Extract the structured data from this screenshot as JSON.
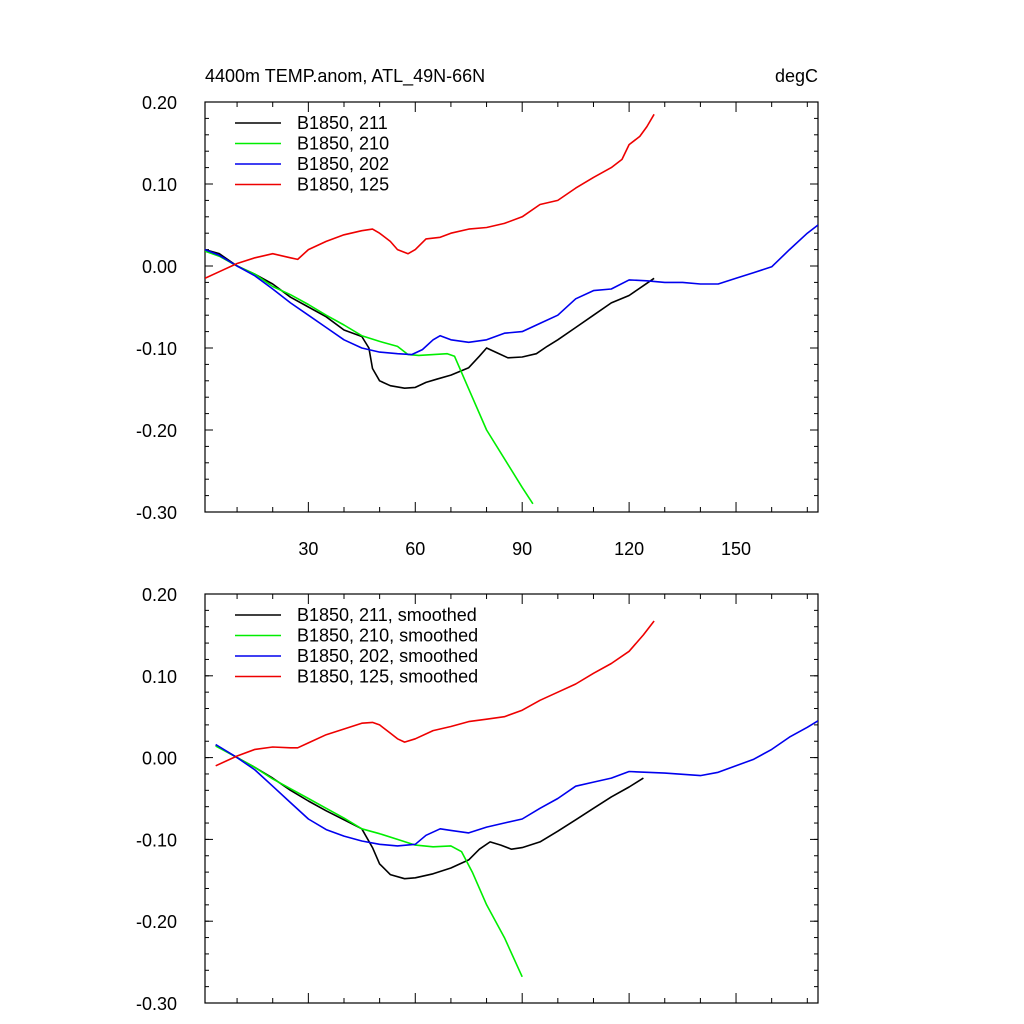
{
  "figure": {
    "title": "4400m TEMP.anom, ATL_49N-66N",
    "units": "degC"
  },
  "chart_data": [
    {
      "type": "line",
      "xlim": [
        1,
        173
      ],
      "ylim": [
        -0.3,
        0.2
      ],
      "x_ticks": [
        30,
        60,
        90,
        120,
        150
      ],
      "x_tick_labels": [
        "30",
        "60",
        "90",
        "120",
        "150"
      ],
      "y_ticks": [
        0.2,
        0.1,
        0.0,
        -0.1,
        -0.2,
        -0.3
      ],
      "y_tick_labels": [
        "0.20",
        "0.10",
        "0.00",
        "-0.10",
        "-0.20",
        "-0.30"
      ],
      "legend_position": "top-left",
      "series": [
        {
          "name": "B1850, 211",
          "color": "#000000",
          "points": [
            [
              1,
              0.02
            ],
            [
              5,
              0.015
            ],
            [
              10,
              0.0
            ],
            [
              15,
              -0.01
            ],
            [
              20,
              -0.022
            ],
            [
              25,
              -0.038
            ],
            [
              30,
              -0.05
            ],
            [
              35,
              -0.062
            ],
            [
              40,
              -0.078
            ],
            [
              45,
              -0.086
            ],
            [
              47,
              -0.1
            ],
            [
              48,
              -0.125
            ],
            [
              50,
              -0.14
            ],
            [
              53,
              -0.146
            ],
            [
              57,
              -0.149
            ],
            [
              60,
              -0.148
            ],
            [
              63,
              -0.142
            ],
            [
              66,
              -0.138
            ],
            [
              70,
              -0.133
            ],
            [
              75,
              -0.124
            ],
            [
              78,
              -0.11
            ],
            [
              80,
              -0.1
            ],
            [
              83,
              -0.106
            ],
            [
              86,
              -0.112
            ],
            [
              90,
              -0.111
            ],
            [
              94,
              -0.107
            ],
            [
              97,
              -0.098
            ],
            [
              100,
              -0.09
            ],
            [
              105,
              -0.075
            ],
            [
              110,
              -0.06
            ],
            [
              115,
              -0.045
            ],
            [
              120,
              -0.036
            ],
            [
              124,
              -0.024
            ],
            [
              127,
              -0.015
            ]
          ]
        },
        {
          "name": "B1850, 210",
          "color": "#00ee00",
          "points": [
            [
              1,
              0.018
            ],
            [
              5,
              0.012
            ],
            [
              10,
              0.0
            ],
            [
              15,
              -0.01
            ],
            [
              20,
              -0.025
            ],
            [
              25,
              -0.035
            ],
            [
              30,
              -0.047
            ],
            [
              35,
              -0.06
            ],
            [
              40,
              -0.072
            ],
            [
              45,
              -0.085
            ],
            [
              50,
              -0.092
            ],
            [
              55,
              -0.098
            ],
            [
              58,
              -0.108
            ],
            [
              61,
              -0.109
            ],
            [
              65,
              -0.108
            ],
            [
              69,
              -0.107
            ],
            [
              71,
              -0.11
            ],
            [
              73,
              -0.13
            ],
            [
              76,
              -0.16
            ],
            [
              80,
              -0.2
            ],
            [
              85,
              -0.235
            ],
            [
              90,
              -0.27
            ],
            [
              93,
              -0.29
            ]
          ]
        },
        {
          "name": "B1850, 202",
          "color": "#0000ee",
          "points": [
            [
              1,
              0.02
            ],
            [
              5,
              0.013
            ],
            [
              10,
              0.0
            ],
            [
              15,
              -0.012
            ],
            [
              20,
              -0.028
            ],
            [
              25,
              -0.045
            ],
            [
              30,
              -0.06
            ],
            [
              35,
              -0.075
            ],
            [
              40,
              -0.09
            ],
            [
              45,
              -0.1
            ],
            [
              50,
              -0.105
            ],
            [
              55,
              -0.107
            ],
            [
              59,
              -0.108
            ],
            [
              62,
              -0.102
            ],
            [
              65,
              -0.09
            ],
            [
              67,
              -0.085
            ],
            [
              70,
              -0.09
            ],
            [
              75,
              -0.093
            ],
            [
              80,
              -0.09
            ],
            [
              85,
              -0.082
            ],
            [
              90,
              -0.08
            ],
            [
              95,
              -0.07
            ],
            [
              100,
              -0.06
            ],
            [
              105,
              -0.04
            ],
            [
              110,
              -0.03
            ],
            [
              115,
              -0.028
            ],
            [
              120,
              -0.017
            ],
            [
              125,
              -0.018
            ],
            [
              130,
              -0.02
            ],
            [
              135,
              -0.02
            ],
            [
              140,
              -0.022
            ],
            [
              145,
              -0.022
            ],
            [
              150,
              -0.015
            ],
            [
              155,
              -0.008
            ],
            [
              160,
              -0.001
            ],
            [
              165,
              0.02
            ],
            [
              170,
              0.04
            ],
            [
              173,
              0.05
            ]
          ]
        },
        {
          "name": "B1850, 125",
          "color": "#ee0000",
          "points": [
            [
              1,
              -0.015
            ],
            [
              5,
              -0.007
            ],
            [
              10,
              0.003
            ],
            [
              15,
              0.01
            ],
            [
              20,
              0.015
            ],
            [
              25,
              0.01
            ],
            [
              27,
              0.008
            ],
            [
              30,
              0.02
            ],
            [
              35,
              0.03
            ],
            [
              40,
              0.038
            ],
            [
              45,
              0.043
            ],
            [
              48,
              0.045
            ],
            [
              50,
              0.04
            ],
            [
              53,
              0.03
            ],
            [
              55,
              0.02
            ],
            [
              58,
              0.015
            ],
            [
              60,
              0.02
            ],
            [
              63,
              0.033
            ],
            [
              67,
              0.035
            ],
            [
              70,
              0.04
            ],
            [
              75,
              0.045
            ],
            [
              80,
              0.047
            ],
            [
              85,
              0.052
            ],
            [
              90,
              0.06
            ],
            [
              95,
              0.075
            ],
            [
              100,
              0.08
            ],
            [
              105,
              0.095
            ],
            [
              110,
              0.108
            ],
            [
              115,
              0.12
            ],
            [
              118,
              0.13
            ],
            [
              120,
              0.148
            ],
            [
              123,
              0.158
            ],
            [
              125,
              0.17
            ],
            [
              127,
              0.185
            ]
          ]
        }
      ]
    },
    {
      "type": "line",
      "xlim": [
        1,
        173
      ],
      "ylim": [
        -0.3,
        0.2
      ],
      "x_ticks": [
        30,
        60,
        90,
        120,
        150
      ],
      "x_tick_labels": [],
      "y_ticks": [
        0.2,
        0.1,
        0.0,
        -0.1,
        -0.2,
        -0.3
      ],
      "y_tick_labels": [
        "0.20",
        "0.10",
        "0.00",
        "-0.10",
        "-0.20",
        "-0.30"
      ],
      "legend_position": "top-left",
      "series": [
        {
          "name": "B1850, 211, smoothed",
          "color": "#000000",
          "points": [
            [
              4,
              0.015
            ],
            [
              10,
              0.0
            ],
            [
              15,
              -0.012
            ],
            [
              20,
              -0.025
            ],
            [
              25,
              -0.04
            ],
            [
              30,
              -0.053
            ],
            [
              35,
              -0.065
            ],
            [
              40,
              -0.076
            ],
            [
              45,
              -0.087
            ],
            [
              48,
              -0.11
            ],
            [
              50,
              -0.13
            ],
            [
              53,
              -0.143
            ],
            [
              57,
              -0.148
            ],
            [
              60,
              -0.147
            ],
            [
              65,
              -0.142
            ],
            [
              70,
              -0.135
            ],
            [
              75,
              -0.125
            ],
            [
              78,
              -0.112
            ],
            [
              81,
              -0.103
            ],
            [
              84,
              -0.107
            ],
            [
              87,
              -0.112
            ],
            [
              90,
              -0.11
            ],
            [
              95,
              -0.103
            ],
            [
              100,
              -0.09
            ],
            [
              105,
              -0.076
            ],
            [
              110,
              -0.062
            ],
            [
              115,
              -0.048
            ],
            [
              120,
              -0.036
            ],
            [
              124,
              -0.025
            ]
          ]
        },
        {
          "name": "B1850, 210, smoothed",
          "color": "#00ee00",
          "points": [
            [
              4,
              0.014
            ],
            [
              10,
              0.0
            ],
            [
              15,
              -0.012
            ],
            [
              20,
              -0.026
            ],
            [
              25,
              -0.038
            ],
            [
              30,
              -0.05
            ],
            [
              35,
              -0.062
            ],
            [
              40,
              -0.074
            ],
            [
              45,
              -0.087
            ],
            [
              50,
              -0.093
            ],
            [
              55,
              -0.1
            ],
            [
              60,
              -0.107
            ],
            [
              65,
              -0.109
            ],
            [
              70,
              -0.108
            ],
            [
              73,
              -0.115
            ],
            [
              76,
              -0.14
            ],
            [
              80,
              -0.18
            ],
            [
              85,
              -0.22
            ],
            [
              90,
              -0.268
            ]
          ]
        },
        {
          "name": "B1850, 202, smoothed",
          "color": "#0000ee",
          "points": [
            [
              4,
              0.016
            ],
            [
              10,
              0.0
            ],
            [
              15,
              -0.015
            ],
            [
              20,
              -0.035
            ],
            [
              25,
              -0.055
            ],
            [
              30,
              -0.075
            ],
            [
              35,
              -0.088
            ],
            [
              40,
              -0.096
            ],
            [
              45,
              -0.102
            ],
            [
              50,
              -0.106
            ],
            [
              55,
              -0.108
            ],
            [
              60,
              -0.106
            ],
            [
              63,
              -0.095
            ],
            [
              67,
              -0.087
            ],
            [
              70,
              -0.089
            ],
            [
              75,
              -0.092
            ],
            [
              80,
              -0.085
            ],
            [
              85,
              -0.08
            ],
            [
              90,
              -0.075
            ],
            [
              95,
              -0.062
            ],
            [
              100,
              -0.05
            ],
            [
              105,
              -0.035
            ],
            [
              110,
              -0.03
            ],
            [
              115,
              -0.025
            ],
            [
              120,
              -0.017
            ],
            [
              130,
              -0.019
            ],
            [
              140,
              -0.022
            ],
            [
              145,
              -0.018
            ],
            [
              150,
              -0.01
            ],
            [
              155,
              -0.002
            ],
            [
              160,
              0.01
            ],
            [
              165,
              0.025
            ],
            [
              170,
              0.037
            ],
            [
              173,
              0.045
            ]
          ]
        },
        {
          "name": "B1850, 125, smoothed",
          "color": "#ee0000",
          "points": [
            [
              4,
              -0.01
            ],
            [
              10,
              0.002
            ],
            [
              15,
              0.01
            ],
            [
              20,
              0.013
            ],
            [
              25,
              0.012
            ],
            [
              27,
              0.012
            ],
            [
              30,
              0.018
            ],
            [
              35,
              0.028
            ],
            [
              40,
              0.035
            ],
            [
              45,
              0.042
            ],
            [
              48,
              0.043
            ],
            [
              50,
              0.04
            ],
            [
              53,
              0.03
            ],
            [
              55,
              0.023
            ],
            [
              57,
              0.019
            ],
            [
              60,
              0.023
            ],
            [
              65,
              0.033
            ],
            [
              70,
              0.038
            ],
            [
              75,
              0.044
            ],
            [
              80,
              0.047
            ],
            [
              85,
              0.05
            ],
            [
              90,
              0.058
            ],
            [
              95,
              0.07
            ],
            [
              100,
              0.08
            ],
            [
              105,
              0.09
            ],
            [
              110,
              0.103
            ],
            [
              115,
              0.115
            ],
            [
              120,
              0.13
            ],
            [
              124,
              0.15
            ],
            [
              127,
              0.167
            ]
          ]
        }
      ]
    }
  ]
}
